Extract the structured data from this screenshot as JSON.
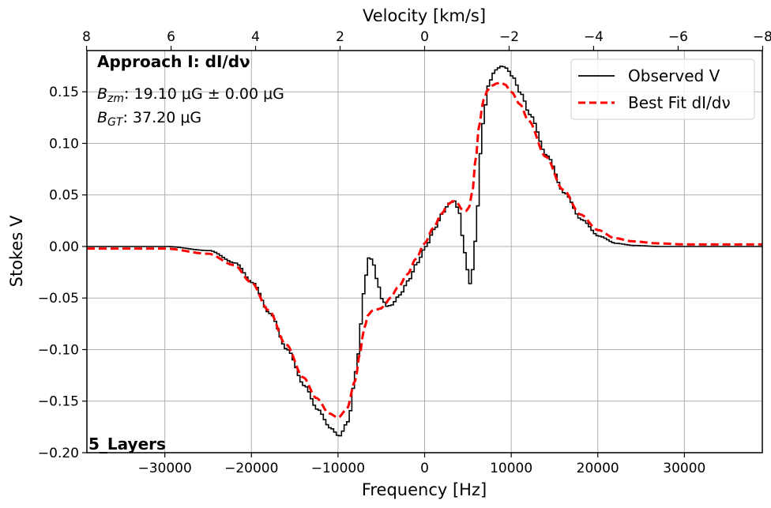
{
  "chart_data": {
    "type": "line",
    "xlabel": "Frequency [Hz]",
    "ylabel": "Stokes V",
    "top_xlabel": "Velocity [km/s]",
    "xlim": [
      -39000,
      39000
    ],
    "ylim": [
      -0.2,
      0.19
    ],
    "grid": true,
    "legend_position": "top-right",
    "x_ticks": [
      -30000,
      -20000,
      -10000,
      0,
      10000,
      20000,
      30000
    ],
    "x_tick_labels": [
      "−30000",
      "−20000",
      "−10000",
      "0",
      "10000",
      "20000",
      "30000"
    ],
    "y_ticks": [
      -0.2,
      -0.15,
      -0.1,
      -0.05,
      0.0,
      0.05,
      0.1,
      0.15
    ],
    "y_tick_labels": [
      "−0.20",
      "−0.15",
      "−0.10",
      "−0.05",
      "0.00",
      "0.05",
      "0.10",
      "0.15"
    ],
    "top_ticks_velocity": [
      8,
      6,
      4,
      2,
      0,
      -2,
      -4,
      -6,
      -8
    ],
    "top_tick_labels": [
      "8",
      "6",
      "4",
      "2",
      "0",
      "−2",
      "−4",
      "−6",
      "−8"
    ],
    "hz_per_kms": -4880,
    "series": [
      {
        "name": "Observed V",
        "color": "#000000",
        "style": "steps",
        "x": [
          -39000,
          -30000,
          -25000,
          -22000,
          -20000,
          -18000,
          -16000,
          -14000,
          -12500,
          -11000,
          -10000,
          -9000,
          -8000,
          -7500,
          -7000,
          -6500,
          -6000,
          -5500,
          -5000,
          -4500,
          -4000,
          -3000,
          -2000,
          -1000,
          0,
          1000,
          2000,
          2700,
          3300,
          3800,
          4300,
          4700,
          5100,
          5500,
          5900,
          6300,
          6800,
          7300,
          7800,
          8300,
          8800,
          9300,
          10000,
          11000,
          12000,
          14000,
          16000,
          18000,
          20000,
          22000,
          24000,
          27000,
          30000,
          35000,
          39000
        ],
        "y": [
          0.0,
          0.0,
          -0.004,
          -0.016,
          -0.035,
          -0.065,
          -0.1,
          -0.135,
          -0.158,
          -0.176,
          -0.184,
          -0.17,
          -0.12,
          -0.075,
          -0.03,
          -0.009,
          -0.018,
          -0.038,
          -0.052,
          -0.058,
          -0.057,
          -0.047,
          -0.033,
          -0.016,
          0.0,
          0.017,
          0.033,
          0.042,
          0.044,
          0.035,
          0.008,
          -0.02,
          -0.036,
          -0.02,
          0.03,
          0.09,
          0.135,
          0.158,
          0.168,
          0.173,
          0.175,
          0.173,
          0.165,
          0.148,
          0.128,
          0.088,
          0.052,
          0.026,
          0.01,
          0.003,
          0.001,
          0.0,
          0.0,
          0.0,
          0.0
        ]
      },
      {
        "name": "Best Fit dI/dν",
        "color": "#ff0000",
        "style": "dashed",
        "x": [
          -39000,
          -30000,
          -25000,
          -22000,
          -20000,
          -18000,
          -16000,
          -14000,
          -12500,
          -11000,
          -10000,
          -9000,
          -8000,
          -7500,
          -7000,
          -6500,
          -6000,
          -5500,
          -5000,
          -4500,
          -4000,
          -3000,
          -2000,
          -1000,
          0,
          1000,
          2000,
          2700,
          3300,
          3800,
          4300,
          4700,
          5100,
          5500,
          5900,
          6300,
          6800,
          7300,
          7800,
          8300,
          8800,
          9300,
          10000,
          11000,
          12000,
          14000,
          16000,
          18000,
          20000,
          22000,
          24000,
          27000,
          30000,
          35000,
          39000
        ],
        "y": [
          -0.002,
          -0.002,
          -0.007,
          -0.018,
          -0.035,
          -0.062,
          -0.095,
          -0.127,
          -0.147,
          -0.162,
          -0.166,
          -0.158,
          -0.13,
          -0.105,
          -0.08,
          -0.066,
          -0.062,
          -0.061,
          -0.06,
          -0.055,
          -0.05,
          -0.039,
          -0.027,
          -0.012,
          0.003,
          0.018,
          0.032,
          0.041,
          0.044,
          0.042,
          0.036,
          0.034,
          0.037,
          0.052,
          0.085,
          0.118,
          0.142,
          0.152,
          0.156,
          0.158,
          0.159,
          0.157,
          0.15,
          0.138,
          0.122,
          0.087,
          0.055,
          0.031,
          0.016,
          0.008,
          0.005,
          0.003,
          0.002,
          0.002,
          0.002
        ]
      }
    ],
    "annotations": {
      "title": "Approach I: dI/dν",
      "bzm_sub": "zm",
      "bzm_value": ": 19.10 μG ± 0.00 μG",
      "bgt_sub": "GT",
      "bgt_value": ": 37.20 μG",
      "b_symbol": "B",
      "layers": "5_Layers"
    }
  }
}
